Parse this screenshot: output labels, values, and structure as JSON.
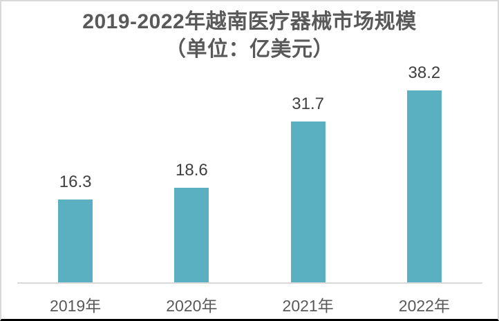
{
  "chart_data": {
    "type": "bar",
    "title_line1": "2019-2022年越南医疗器械市场规模",
    "title_line2": "（单位：亿美元）",
    "categories": [
      "2019年",
      "2020年",
      "2021年",
      "2022年"
    ],
    "values": [
      16.3,
      18.6,
      31.7,
      38.2
    ],
    "ylim": [
      0,
      42
    ],
    "grid": false,
    "legend": "none",
    "bar_color": "#5AB0C1",
    "value_label_color": "#404040",
    "title_color": "#595959",
    "axis_line_color": "#D9D9D9"
  }
}
